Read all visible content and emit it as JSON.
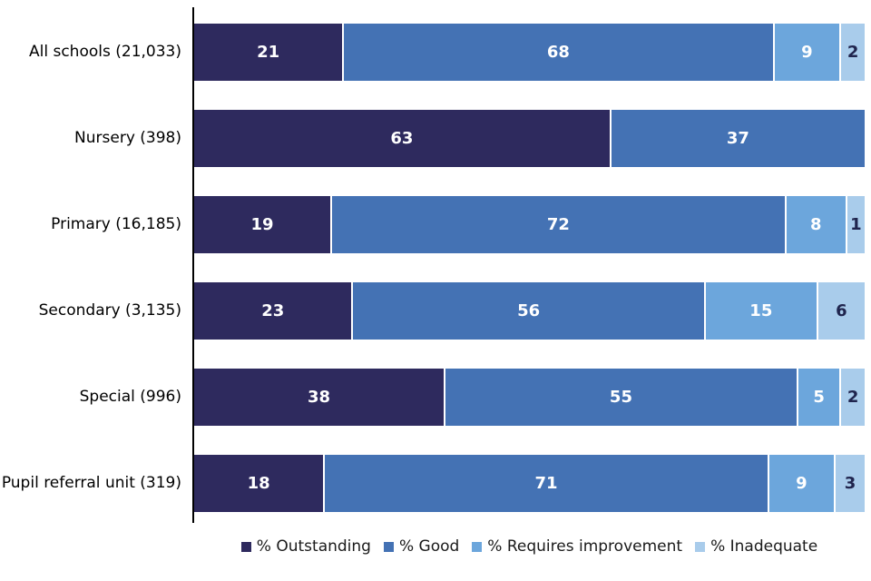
{
  "chart_data": {
    "type": "bar",
    "variant": "horizontal-stacked",
    "title": "",
    "xlabel": "",
    "ylabel": "",
    "xlim": [
      0,
      100
    ],
    "unit": "percent",
    "grid": false,
    "legend_position": "bottom",
    "value_labels": "inside-segments",
    "categories": [
      "All schools (21,033)",
      "Nursery (398)",
      "Primary (16,185)",
      "Secondary (3,135)",
      "Special (996)",
      "Pupil referral unit (319)"
    ],
    "series": [
      {
        "name": "% Outstanding",
        "color": "#2E2A5E",
        "label_color": "#FFFFFF",
        "values": [
          21,
          63,
          19,
          23,
          38,
          18
        ]
      },
      {
        "name": "% Good",
        "color": "#4472B4",
        "label_color": "#FFFFFF",
        "values": [
          68,
          37,
          72,
          56,
          55,
          71
        ]
      },
      {
        "name": "% Requires improvement",
        "color": "#6CA6DC",
        "label_color": "#FFFFFF",
        "values": [
          9,
          0,
          8,
          15,
          5,
          9
        ]
      },
      {
        "name": "% Inadequate",
        "color": "#A9CCEB",
        "label_color": "#20254E",
        "values": [
          2,
          0,
          1,
          6,
          2,
          3
        ]
      }
    ],
    "axis_color": "#000000"
  }
}
